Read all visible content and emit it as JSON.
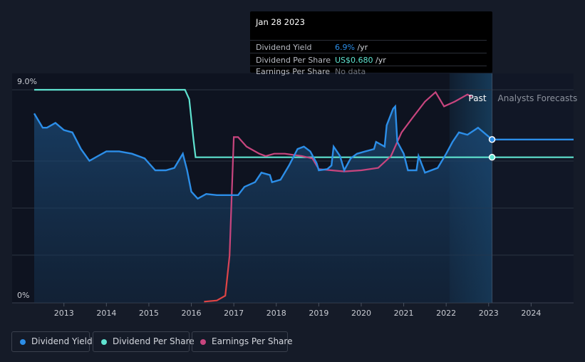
{
  "colors": {
    "background": "#151b28",
    "dividend_yield": "#2c8ee8",
    "dividend_per_share": "#5fe3d0",
    "earnings_per_share": "#c8457e",
    "earnings_per_share_negative": "#e04444"
  },
  "tooltip": {
    "date": "Jan 28 2023",
    "rows": [
      {
        "label": "Dividend Yield",
        "value": "6.9%",
        "unit": " /yr",
        "color": "#2c8ee8"
      },
      {
        "label": "Dividend Per Share",
        "value": "US$0.680",
        "unit": " /yr",
        "color": "#5fe3d0"
      },
      {
        "label": "Earnings Per Share",
        "value": "No data",
        "unit": "",
        "color": "#6e737d"
      }
    ]
  },
  "legend": [
    {
      "label": "Dividend Yield",
      "color": "#2c8ee8"
    },
    {
      "label": "Dividend Per Share",
      "color": "#5fe3d0"
    },
    {
      "label": "Earnings Per Share",
      "color": "#c8457e"
    }
  ],
  "chart_data": {
    "type": "line",
    "title": "",
    "xlabel": "",
    "ylabel": "",
    "x_ticks": [
      "2013",
      "2014",
      "2015",
      "2016",
      "2017",
      "2018",
      "2019",
      "2020",
      "2021",
      "2022",
      "2023",
      "2024"
    ],
    "y_tick_labels": [
      "9.0%",
      "0%"
    ],
    "xlim": [
      2012.3,
      2025.0
    ],
    "ylim": [
      0,
      9.0
    ],
    "current_date": 2023.08,
    "regions": {
      "past_label": "Past",
      "forecast_label": "Analysts Forecasts",
      "forecast_start": 2022.08
    },
    "series": [
      {
        "name": "Dividend Yield",
        "unit": "%",
        "points": [
          [
            2012.3,
            8.0
          ],
          [
            2012.5,
            7.4
          ],
          [
            2012.6,
            7.4
          ],
          [
            2012.8,
            7.6
          ],
          [
            2013.0,
            7.3
          ],
          [
            2013.2,
            7.2
          ],
          [
            2013.4,
            6.5
          ],
          [
            2013.6,
            6.0
          ],
          [
            2013.8,
            6.2
          ],
          [
            2014.0,
            6.4
          ],
          [
            2014.3,
            6.4
          ],
          [
            2014.6,
            6.3
          ],
          [
            2014.9,
            6.1
          ],
          [
            2015.0,
            5.9
          ],
          [
            2015.15,
            5.6
          ],
          [
            2015.4,
            5.6
          ],
          [
            2015.6,
            5.7
          ],
          [
            2015.8,
            6.3
          ],
          [
            2015.9,
            5.6
          ],
          [
            2016.0,
            4.7
          ],
          [
            2016.15,
            4.4
          ],
          [
            2016.35,
            4.6
          ],
          [
            2016.6,
            4.55
          ],
          [
            2016.9,
            4.55
          ],
          [
            2017.1,
            4.55
          ],
          [
            2017.25,
            4.9
          ],
          [
            2017.5,
            5.1
          ],
          [
            2017.65,
            5.5
          ],
          [
            2017.85,
            5.4
          ],
          [
            2017.9,
            5.1
          ],
          [
            2018.1,
            5.2
          ],
          [
            2018.3,
            5.8
          ],
          [
            2018.5,
            6.5
          ],
          [
            2018.65,
            6.6
          ],
          [
            2018.8,
            6.4
          ],
          [
            2018.95,
            5.9
          ],
          [
            2019.0,
            5.6
          ],
          [
            2019.2,
            5.65
          ],
          [
            2019.3,
            5.8
          ],
          [
            2019.35,
            6.6
          ],
          [
            2019.5,
            6.2
          ],
          [
            2019.6,
            5.6
          ],
          [
            2019.75,
            6.1
          ],
          [
            2019.9,
            6.3
          ],
          [
            2020.1,
            6.4
          ],
          [
            2020.3,
            6.5
          ],
          [
            2020.35,
            6.8
          ],
          [
            2020.55,
            6.6
          ],
          [
            2020.6,
            7.5
          ],
          [
            2020.75,
            8.2
          ],
          [
            2020.8,
            8.3
          ],
          [
            2020.85,
            6.8
          ],
          [
            2021.0,
            6.3
          ],
          [
            2021.1,
            5.6
          ],
          [
            2021.3,
            5.6
          ],
          [
            2021.35,
            6.2
          ],
          [
            2021.5,
            5.5
          ],
          [
            2021.8,
            5.7
          ],
          [
            2022.0,
            6.3
          ],
          [
            2022.15,
            6.8
          ],
          [
            2022.3,
            7.2
          ],
          [
            2022.5,
            7.1
          ],
          [
            2022.75,
            7.4
          ],
          [
            2023.08,
            6.9
          ],
          [
            2025.0,
            6.9
          ]
        ]
      },
      {
        "name": "Dividend Per Share",
        "unit": "US$",
        "points": [
          [
            2012.3,
            9.0
          ],
          [
            2015.85,
            9.0
          ],
          [
            2015.95,
            8.6
          ],
          [
            2016.05,
            6.9
          ],
          [
            2016.1,
            6.15
          ],
          [
            2023.08,
            6.15
          ],
          [
            2025.0,
            6.15
          ]
        ]
      },
      {
        "name": "Earnings Per Share",
        "unit": "US$",
        "points": [
          [
            2016.3,
            0.05
          ],
          [
            2016.6,
            0.1
          ],
          [
            2016.8,
            0.3
          ],
          [
            2016.9,
            2.0
          ],
          [
            2017.0,
            7.0
          ],
          [
            2017.1,
            7.0
          ],
          [
            2017.3,
            6.6
          ],
          [
            2017.6,
            6.3
          ],
          [
            2017.75,
            6.2
          ],
          [
            2017.95,
            6.3
          ],
          [
            2018.2,
            6.3
          ],
          [
            2018.6,
            6.2
          ],
          [
            2018.85,
            6.1
          ],
          [
            2019.0,
            5.65
          ],
          [
            2019.3,
            5.6
          ],
          [
            2019.6,
            5.55
          ],
          [
            2020.0,
            5.6
          ],
          [
            2020.4,
            5.7
          ],
          [
            2020.7,
            6.2
          ],
          [
            2020.95,
            7.2
          ],
          [
            2021.2,
            7.8
          ],
          [
            2021.5,
            8.5
          ],
          [
            2021.75,
            8.9
          ],
          [
            2021.95,
            8.3
          ],
          [
            2022.2,
            8.5
          ],
          [
            2022.5,
            8.8
          ],
          [
            2022.6,
            8.7
          ]
        ]
      }
    ]
  }
}
